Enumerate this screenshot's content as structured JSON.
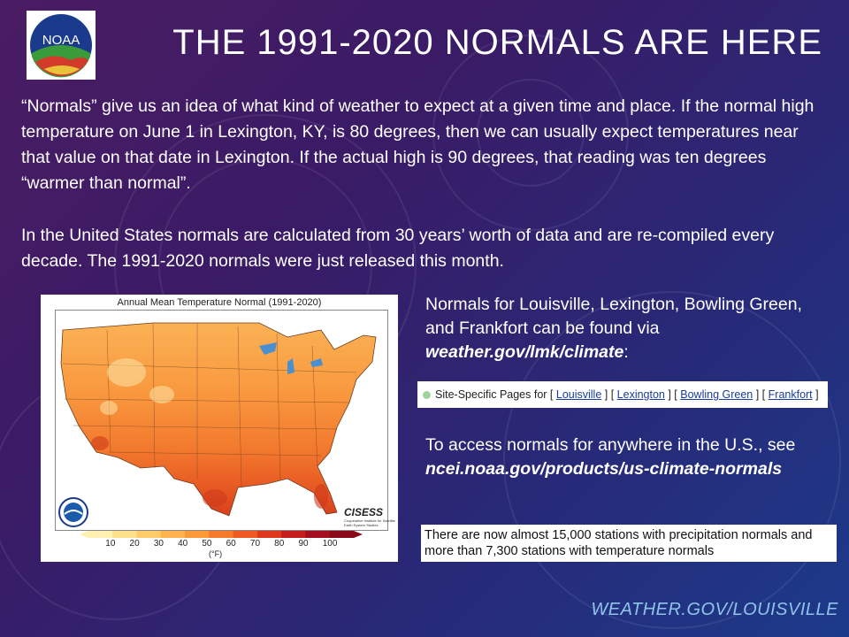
{
  "header": {
    "logo_text": "NOAA",
    "title": "THE 1991-2020 NORMALS ARE HERE"
  },
  "body": {
    "paragraph1": "“Normals” give us an idea of what kind of weather to expect at a given time and place. If the normal high temperature on June 1 in Lexington, KY, is 80 degrees, then we can usually expect temperatures near that value on that date in Lexington. If the actual high is 90 degrees, that reading was ten degrees “warmer than normal”.",
    "paragraph2": "In the United States normals are calculated from 30 years’ worth of data and are re-compiled every decade. The 1991-2020 normals were just released this month."
  },
  "map": {
    "title": "Annual Mean Temperature Normal (1991-2020)",
    "watermark": "CISESS",
    "watermark_sub": "Cooperative Institute for Satellite Earth System Studies",
    "colorbar_ticks": [
      "10",
      "20",
      "30",
      "40",
      "50",
      "60",
      "70",
      "80",
      "90",
      "100"
    ],
    "unit": "(°F)",
    "colorbar_colors": [
      "#fdf0b0",
      "#fde08a",
      "#fdcb6a",
      "#fdb24e",
      "#fb9838",
      "#f67a2b",
      "#ee5a22",
      "#de381c",
      "#c31c1a",
      "#a30f1e",
      "#8a0a1c"
    ]
  },
  "side": {
    "text1_prefix": "Normals for Louisville, Lexington, Bowling Green, and Frankfort can be found via ",
    "text1_link": "weather.gov/lmk/climate",
    "text1_suffix": ":",
    "site_label": "Site-Specific Pages for",
    "site_links": [
      "Louisville",
      "Lexington",
      "Bowling Green",
      "Frankfort"
    ],
    "text2_prefix": "To access normals for anywhere in the U.S., see ",
    "text2_link": "ncei.noaa.gov/products/us-climate-normals",
    "stations_text": "There are now almost 15,000 stations with precipitation normals and more than 7,300 stations with temperature normals"
  },
  "footer": {
    "text": "WEATHER.GOV/LOUISVILLE"
  }
}
